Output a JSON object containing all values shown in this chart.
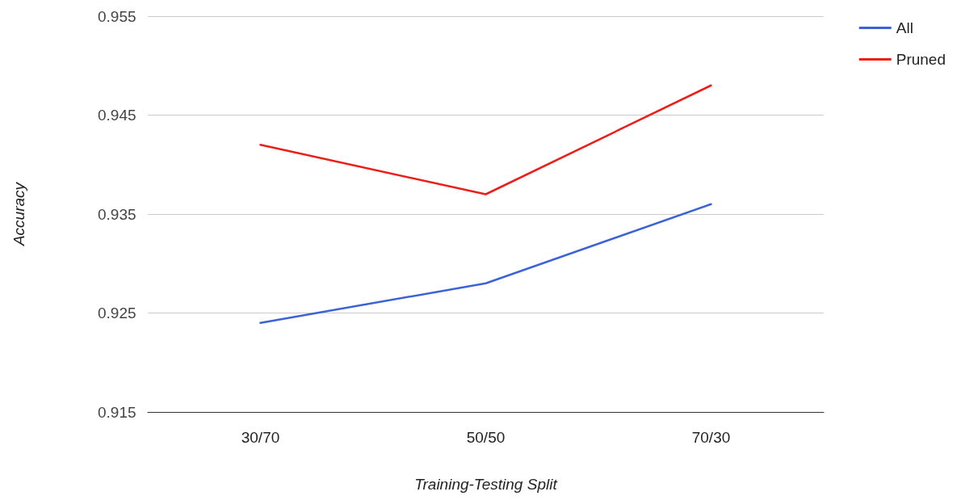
{
  "chart_data": {
    "type": "line",
    "xlabel": "Training-Testing Split",
    "ylabel": "Accuracy",
    "categories": [
      "30/70",
      "50/50",
      "70/30"
    ],
    "series": [
      {
        "name": "All",
        "color": "#3c63d6",
        "values": [
          0.924,
          0.928,
          0.936
        ]
      },
      {
        "name": "Pruned",
        "color": "#ea1f1a",
        "values": [
          0.942,
          0.937,
          0.948
        ]
      }
    ],
    "ylim": [
      0.915,
      0.955
    ],
    "yticks": [
      0.915,
      0.925,
      0.935,
      0.945,
      0.955
    ],
    "grid": "y",
    "legend": "top right",
    "marker": "none",
    "line_style": "solid"
  }
}
